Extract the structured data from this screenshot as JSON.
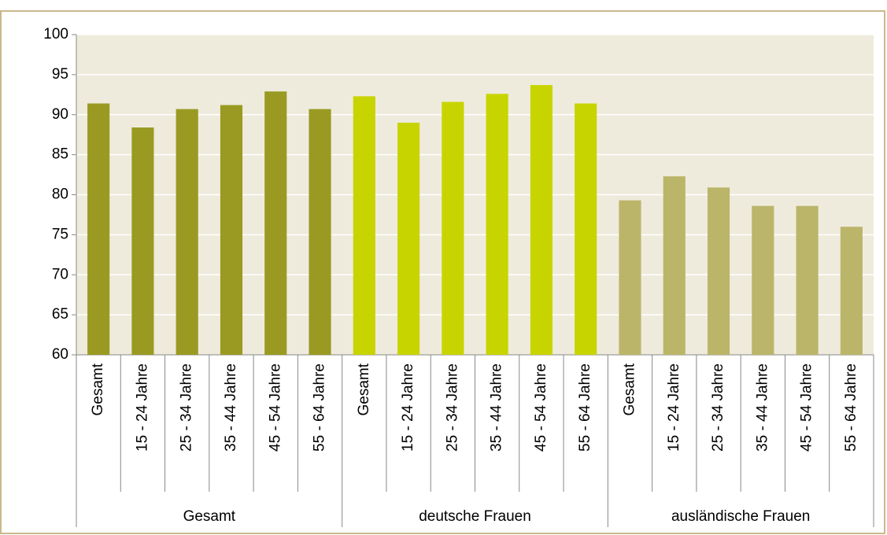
{
  "chart_data": {
    "type": "bar",
    "categories": [
      "Gesamt",
      "15 - 24 Jahre",
      "25 - 34 Jahre",
      "35 - 44 Jahre",
      "45 - 54 Jahre",
      "55 - 64 Jahre"
    ],
    "series": [
      {
        "name": "Gesamt",
        "color": "#9a9a22",
        "values": [
          91.4,
          88.4,
          90.7,
          91.2,
          92.9,
          90.7
        ]
      },
      {
        "name": "deutsche Frauen",
        "color": "#c8d400",
        "values": [
          92.3,
          89.0,
          91.6,
          92.6,
          93.7,
          91.4
        ]
      },
      {
        "name": "ausländische Frauen",
        "color": "#bbb56a",
        "values": [
          79.3,
          82.3,
          80.9,
          78.6,
          78.6,
          76.0
        ]
      }
    ],
    "ylim": [
      60,
      100
    ],
    "yticks": [
      60,
      65,
      70,
      75,
      80,
      85,
      90,
      95,
      100
    ],
    "grid": true
  }
}
